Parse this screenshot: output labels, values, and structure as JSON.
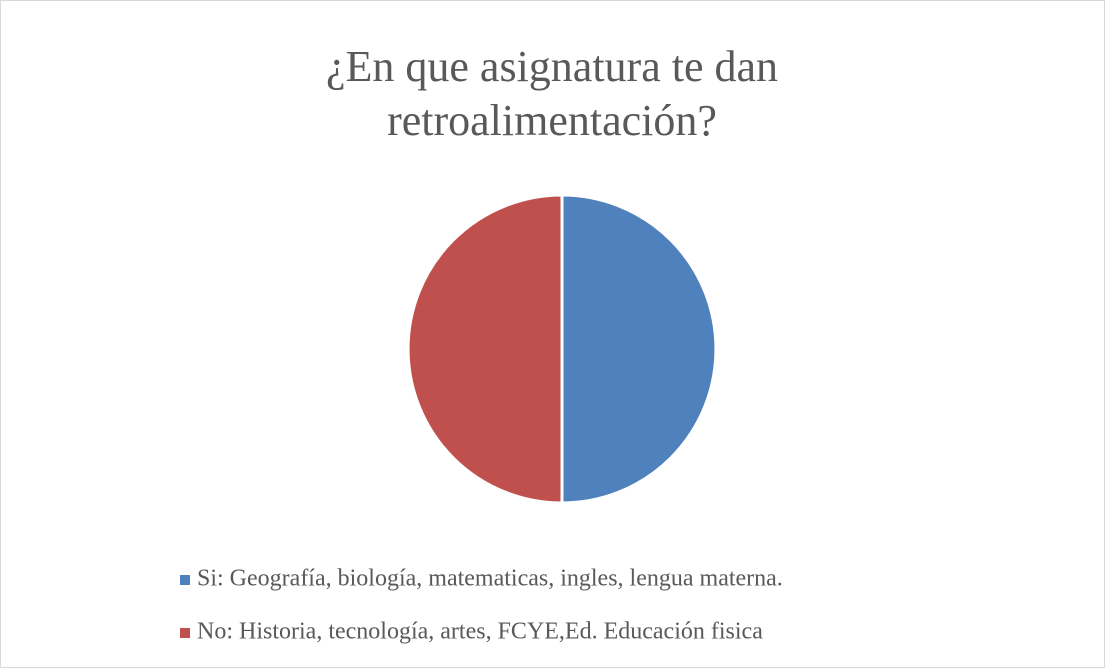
{
  "chart_data": {
    "type": "pie",
    "title": "¿En que asignatura te dan retroalimentación?",
    "categories": [
      "Si: Geografía, biología, matematicas, ingles, lengua materna.",
      "No: Historia, tecnología, artes, FCYE,Ed. Educación fisica"
    ],
    "values": [
      50,
      50
    ],
    "colors": [
      "#4f81bd",
      "#c0504d"
    ],
    "legend": "bottom"
  }
}
